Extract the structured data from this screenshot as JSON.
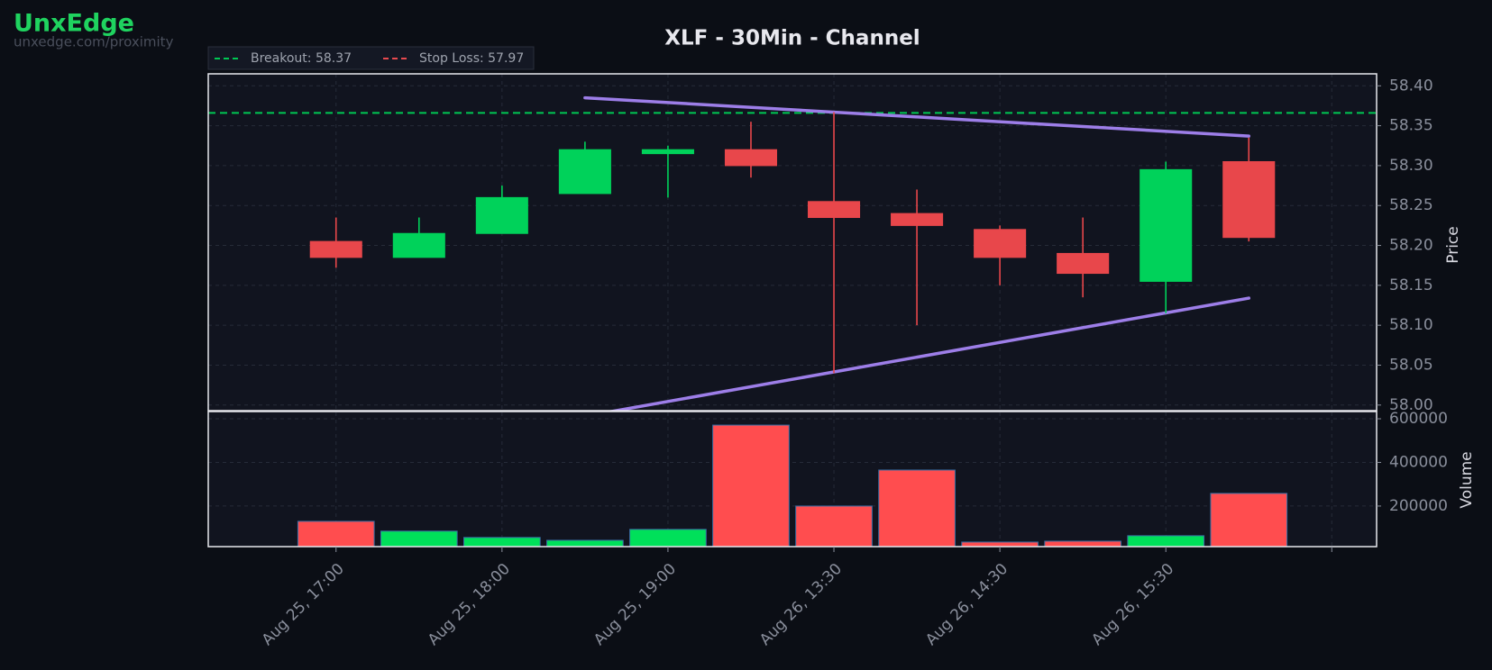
{
  "brand": {
    "name": "UnxEdge",
    "url": "unxedge.com/proximity"
  },
  "chart_data": {
    "type": "candlestick",
    "title": "XLF - 30Min - Channel",
    "categories": [
      "Aug 25, 17:00",
      null,
      "Aug 25, 18:00",
      null,
      "Aug 25, 19:00",
      null,
      "Aug 26, 13:30",
      null,
      "Aug 26, 14:30",
      null,
      "Aug 26, 15:30",
      null
    ],
    "open": [
      58.205,
      58.185,
      58.215,
      58.265,
      58.315,
      58.32,
      58.255,
      58.24,
      58.22,
      58.19,
      58.155,
      58.305
    ],
    "high": [
      58.235,
      58.235,
      58.275,
      58.33,
      58.325,
      58.355,
      58.367,
      58.27,
      58.225,
      58.235,
      58.305,
      58.335
    ],
    "low": [
      58.172,
      58.185,
      58.215,
      58.265,
      58.26,
      58.285,
      58.04,
      58.1,
      58.15,
      58.135,
      58.115,
      58.205
    ],
    "close": [
      58.185,
      58.215,
      58.26,
      58.32,
      58.32,
      58.3,
      58.235,
      58.225,
      58.185,
      58.165,
      58.295,
      58.21
    ],
    "up_color": "#00d25a",
    "down_color": "#e8474b",
    "xlim": [
      -1.54,
      12.54
    ],
    "xticks": [
      0,
      2,
      4,
      6,
      8,
      10,
      12
    ],
    "ylabel": "Price",
    "ylim": [
      57.993,
      58.415
    ],
    "yticks": [
      {
        "value": 58.0,
        "label": "58.00"
      },
      58.05,
      {
        "value": 58.1,
        "label": "58.10"
      },
      58.15,
      {
        "value": 58.2,
        "label": "58.20"
      },
      58.25,
      {
        "value": 58.3,
        "label": "58.30"
      },
      58.35,
      {
        "value": 58.4,
        "label": "58.40"
      }
    ],
    "levels": [
      {
        "name": "Breakout: 58.37",
        "value": 58.366,
        "color": "#00c853"
      },
      {
        "name": "Stop Loss: 57.97",
        "value": 57.97,
        "color": "#e84a4f"
      }
    ],
    "channel": {
      "color": "#9d7ee8",
      "upper": {
        "x": [
          3,
          11
        ],
        "values": [
          58.385,
          58.337
        ]
      },
      "lower": {
        "x": [
          3,
          11
        ],
        "values": [
          57.986,
          58.134
        ]
      }
    },
    "volume": {
      "ylabel": "Volume",
      "values": [
        130000,
        85000,
        56000,
        43000,
        93000,
        571000,
        200000,
        365000,
        35000,
        39000,
        64000,
        258000
      ],
      "up_color": "#00e05a",
      "down_color": "#ff4d4f",
      "ylim": [
        14000,
        629000
      ],
      "yticks": [
        200000,
        400000,
        600000
      ]
    },
    "grid": true
  }
}
